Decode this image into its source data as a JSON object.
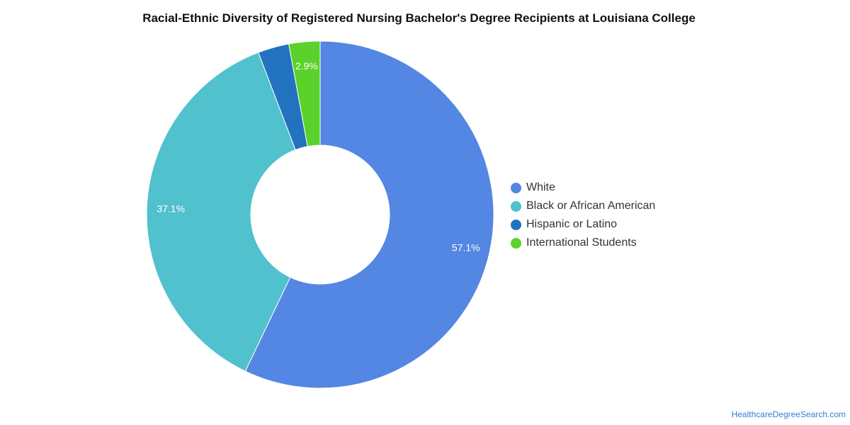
{
  "chart_data": {
    "type": "pie",
    "title": "Racial-Ethnic Diversity of Registered Nursing Bachelor's Degree Recipients at Louisiana College",
    "donut": true,
    "categories": [
      "White",
      "Black or African American",
      "Hispanic or Latino",
      "International Students"
    ],
    "values": [
      57.1,
      37.1,
      2.9,
      2.9
    ],
    "data_labels": [
      "57.1%",
      "37.1%",
      "",
      "2.9%"
    ],
    "colors": [
      "#5486e3",
      "#50c1cd",
      "#2273bf",
      "#5bd12b"
    ],
    "legend_position": "right"
  },
  "source": "HealthcareDegreeSearch.com"
}
